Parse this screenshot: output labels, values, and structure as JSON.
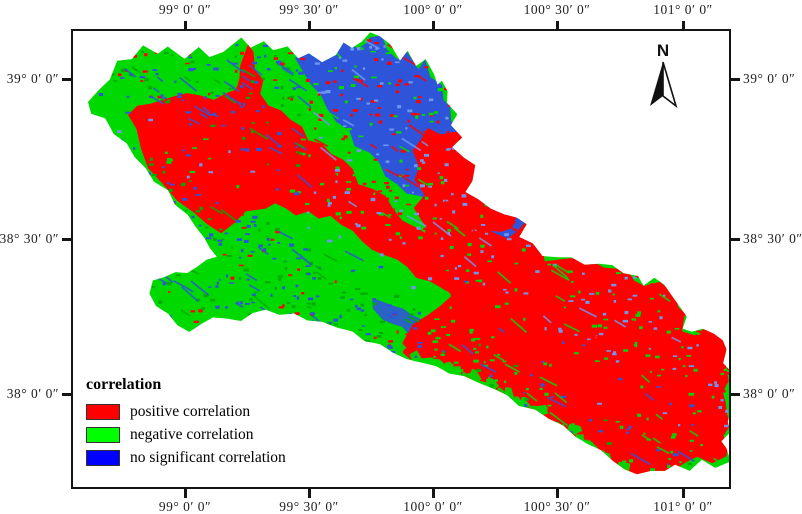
{
  "axes": {
    "lon": [
      {
        "label": "99° 0′ 0″"
      },
      {
        "label": "99° 30′ 0″"
      },
      {
        "label": "100° 0′ 0″"
      },
      {
        "label": "100° 30′ 0″"
      },
      {
        "label": "101° 0′ 0″"
      }
    ],
    "lat": [
      {
        "label": "39° 0′ 0″"
      },
      {
        "label": "38° 30′ 0″"
      },
      {
        "label": "38° 0′ 0″"
      }
    ]
  },
  "north_arrow": {
    "label": "N"
  },
  "legend": {
    "title": "correlation",
    "items": [
      {
        "label": "positive correlation",
        "color": "#ff0000"
      },
      {
        "label": "negative correlation",
        "color": "#00ff00"
      },
      {
        "label": "no significant correlation",
        "color": "#0000ff"
      }
    ]
  },
  "map_palette": {
    "positive": "#ff0000",
    "negative": "#00d900",
    "negative_dark": "#00aa00",
    "no_significant": "#2e55d9",
    "no_significant_light": "#6f96ef"
  }
}
